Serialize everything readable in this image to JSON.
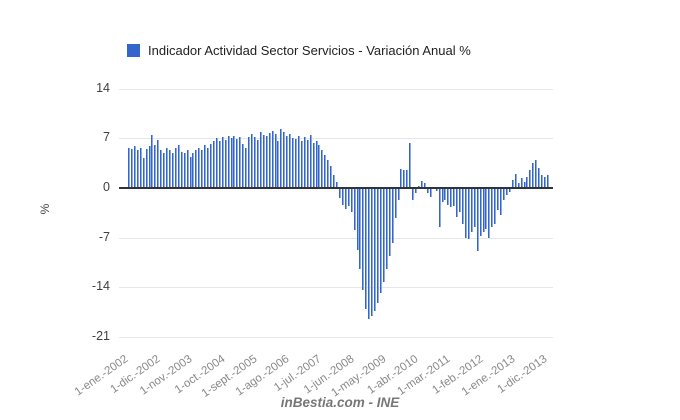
{
  "legend": {
    "label": "Indicador Actividad Sector Servicios - Variación Anual %",
    "color": "#3366cc"
  },
  "footer": {
    "text": "inBestia.com - INE"
  },
  "colors": {
    "bar_fill_dark": "#3366cc",
    "bar_fill_light": "#8fa9e6",
    "zero_axis": "#333333",
    "gridline": "#e6e6e6",
    "x_label": "#888888",
    "y_label": "#404040"
  },
  "chart_data": {
    "type": "bar",
    "title": "Indicador Actividad Sector Servicios - Variación Anual %",
    "xlabel": "",
    "ylabel": "%",
    "ylim": [
      -21,
      14
    ],
    "y_ticks": [
      14,
      7,
      0,
      -7,
      -14,
      -21
    ],
    "grid": true,
    "legend_position": "top",
    "frequency": "monthly",
    "x_start": "1-ene.-2002",
    "x_end": "1-dic.-2013",
    "x_tick_labels": [
      "1-ene.-2002",
      "1-dic.-2002",
      "1-nov.-2003",
      "1-oct.-2004",
      "1-sept.-2005",
      "1-ago.-2006",
      "1-jul.-2007",
      "1-jun.-2008",
      "1-may.-2009",
      "1-abr.-2010",
      "1-mar.-2011",
      "1-feb.-2012",
      "1-ene.-2013",
      "1-dic.-2013"
    ],
    "x_tick_month_indices": [
      0,
      11,
      22,
      33,
      44,
      55,
      66,
      77,
      88,
      99,
      110,
      121,
      132,
      143
    ],
    "series": [
      {
        "name": "Indicador Actividad Sector Servicios - Variación Anual %",
        "color": "#3366cc",
        "values": [
          5.7,
          5.5,
          5.9,
          5.4,
          5.6,
          4.2,
          5.5,
          5.9,
          7.5,
          6.1,
          6.8,
          5.4,
          4.9,
          5.6,
          5.4,
          4.9,
          5.6,
          6.0,
          5.1,
          4.9,
          5.4,
          4.4,
          4.9,
          5.4,
          5.6,
          5.4,
          6.0,
          5.6,
          6.2,
          6.6,
          7.0,
          6.6,
          7.2,
          6.8,
          7.3,
          7.0,
          7.4,
          6.9,
          7.2,
          6.2,
          5.6,
          7.2,
          7.6,
          7.2,
          6.8,
          7.9,
          7.5,
          7.3,
          7.8,
          8.1,
          7.6,
          6.6,
          8.3,
          7.9,
          7.3,
          7.6,
          7.1,
          6.9,
          7.3,
          6.6,
          7.2,
          6.8,
          7.5,
          6.3,
          6.6,
          6.1,
          5.4,
          4.7,
          3.9,
          3.1,
          1.9,
          0.9,
          -1.2,
          -2.2,
          -2.8,
          -2.4,
          -3.2,
          -5.8,
          -8.6,
          -11.3,
          -14.2,
          -16.9,
          -18.3,
          -17.9,
          -17.2,
          -16.1,
          -14.7,
          -13.1,
          -11.3,
          -9.5,
          -7.6,
          -4.1,
          -1.5,
          2.7,
          2.5,
          2.6,
          6.4,
          -1.6,
          -0.6,
          0.3,
          1.0,
          0.7,
          -0.6,
          -1.1,
          0.2,
          -0.3,
          -5.3,
          -1.9,
          -1.6,
          -2.2,
          -2.6,
          -2.4,
          -4.0,
          -3.3,
          -5.0,
          -6.9,
          -7.1,
          -6.1,
          -5.4,
          -8.7,
          -6.6,
          -6.1,
          -5.7,
          -6.9,
          -5.4,
          -5.0,
          -2.9,
          -3.6,
          -1.5,
          -0.8,
          -0.4,
          1.1,
          2.0,
          0.7,
          1.4,
          0.9,
          1.6,
          2.5,
          3.5,
          4.0,
          2.8,
          1.8,
          1.5,
          1.9
        ]
      }
    ]
  }
}
